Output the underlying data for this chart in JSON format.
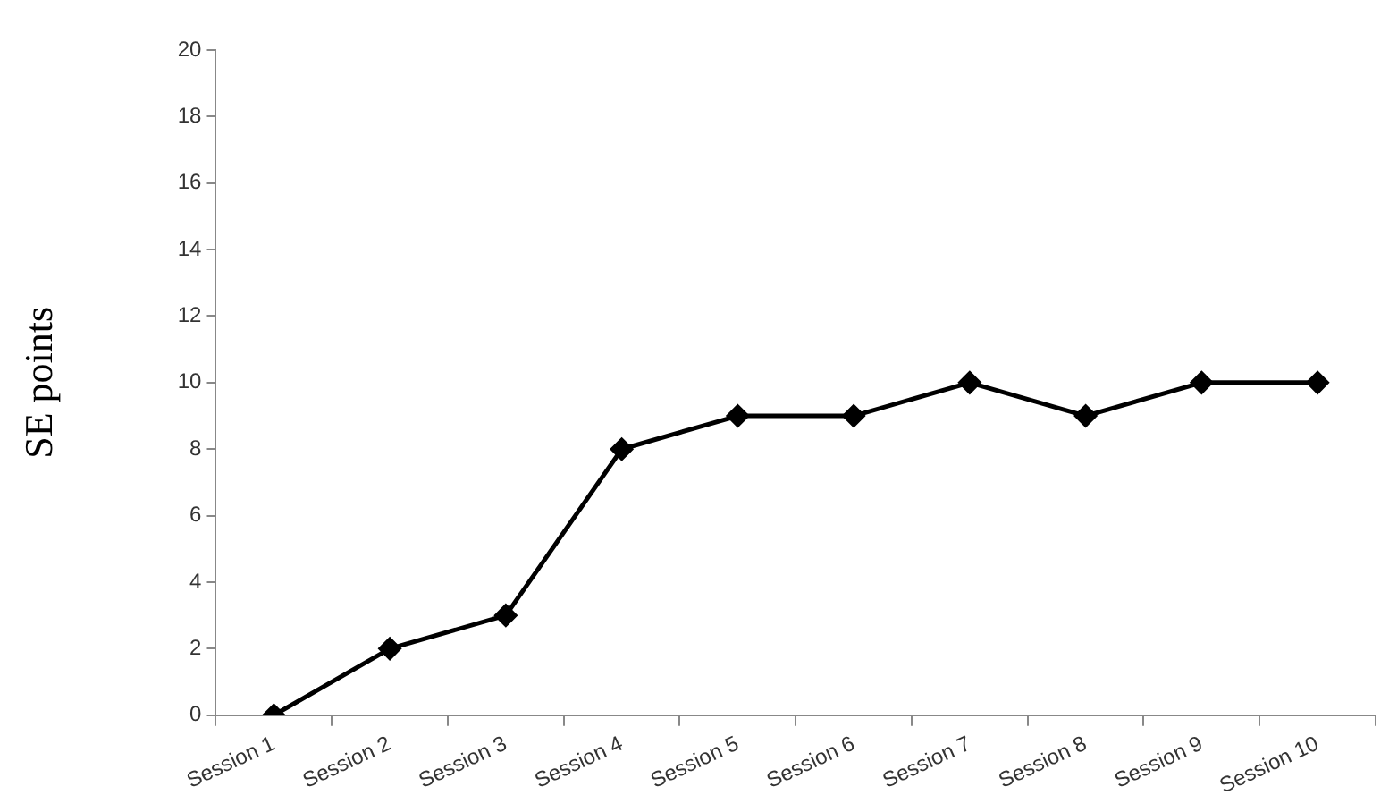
{
  "chart_data": {
    "type": "line",
    "ylabel": "SE points",
    "categories": [
      "Session 1",
      "Session 2",
      "Session 3",
      "Session 4",
      "Session 5",
      "Session 6",
      "Session 7",
      "Session 8",
      "Session 9",
      "Session 10"
    ],
    "series": [
      {
        "color": "#000000",
        "values": [
          0,
          2,
          3,
          8,
          9,
          9,
          10,
          9,
          10,
          10
        ]
      }
    ],
    "ylim": [
      0,
      20
    ],
    "yticks": [
      0,
      2,
      4,
      6,
      8,
      10,
      12,
      14,
      16,
      18,
      20
    ],
    "grid": false,
    "legend": false,
    "marker": "diamond",
    "line_style": "solid"
  }
}
